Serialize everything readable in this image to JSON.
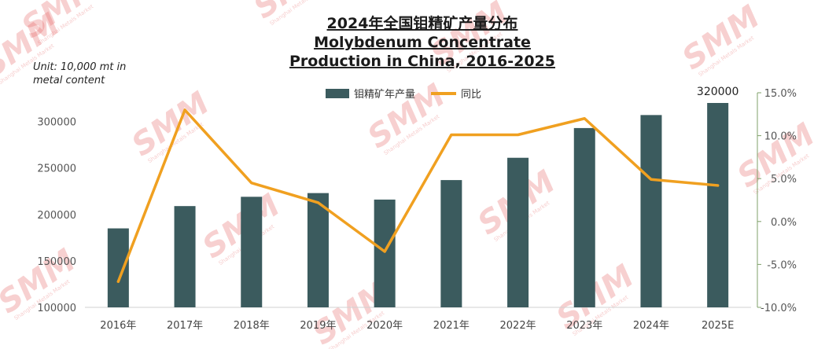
{
  "chart_data": {
    "type": "bar",
    "title_lines": [
      "2024年全国钼精矿产量分布",
      "Molybdenum Concentrate",
      "Production in China, 2016-2025"
    ],
    "unit_lines": [
      "Unit: 10,000 mt in",
      "metal content"
    ],
    "categories": [
      "2016年",
      "2017年",
      "2018年",
      "2019年",
      "2020年",
      "2021年",
      "2022年",
      "2023年",
      "2024年",
      "2025E"
    ],
    "series": [
      {
        "name": "钼精矿年产量",
        "type": "bar",
        "axis": "left",
        "color": "#3b5b5e",
        "values": [
          185000,
          209000,
          219000,
          223000,
          216000,
          237000,
          261000,
          293000,
          307000,
          320000
        ]
      },
      {
        "name": "同比",
        "type": "line",
        "axis": "right",
        "color": "#f0a020",
        "values": [
          -7.0,
          13.0,
          4.5,
          2.2,
          -3.5,
          10.1,
          10.1,
          12.0,
          4.9,
          4.2
        ]
      }
    ],
    "data_labels": [
      {
        "category": "2025E",
        "text": "320000"
      }
    ],
    "y_left": {
      "ylim": [
        100000,
        320000
      ],
      "ticks": [
        100000,
        150000,
        200000,
        250000,
        300000
      ],
      "tick_labels": [
        "100000",
        "150000",
        "200000",
        "250000",
        "300000"
      ]
    },
    "y_right": {
      "ylim": [
        -10,
        15
      ],
      "ticks": [
        15,
        10,
        5,
        0,
        -5,
        -10
      ],
      "tick_labels": [
        "15.0%",
        "10.0%",
        "5.0%",
        "0.0%",
        "-5.0%",
        "-10.0%"
      ]
    },
    "grid": false,
    "legend_position": "top-center",
    "watermark": {
      "text": "SMM",
      "subtext": "Shanghai Metals Market",
      "color": "#e45a5a"
    }
  }
}
